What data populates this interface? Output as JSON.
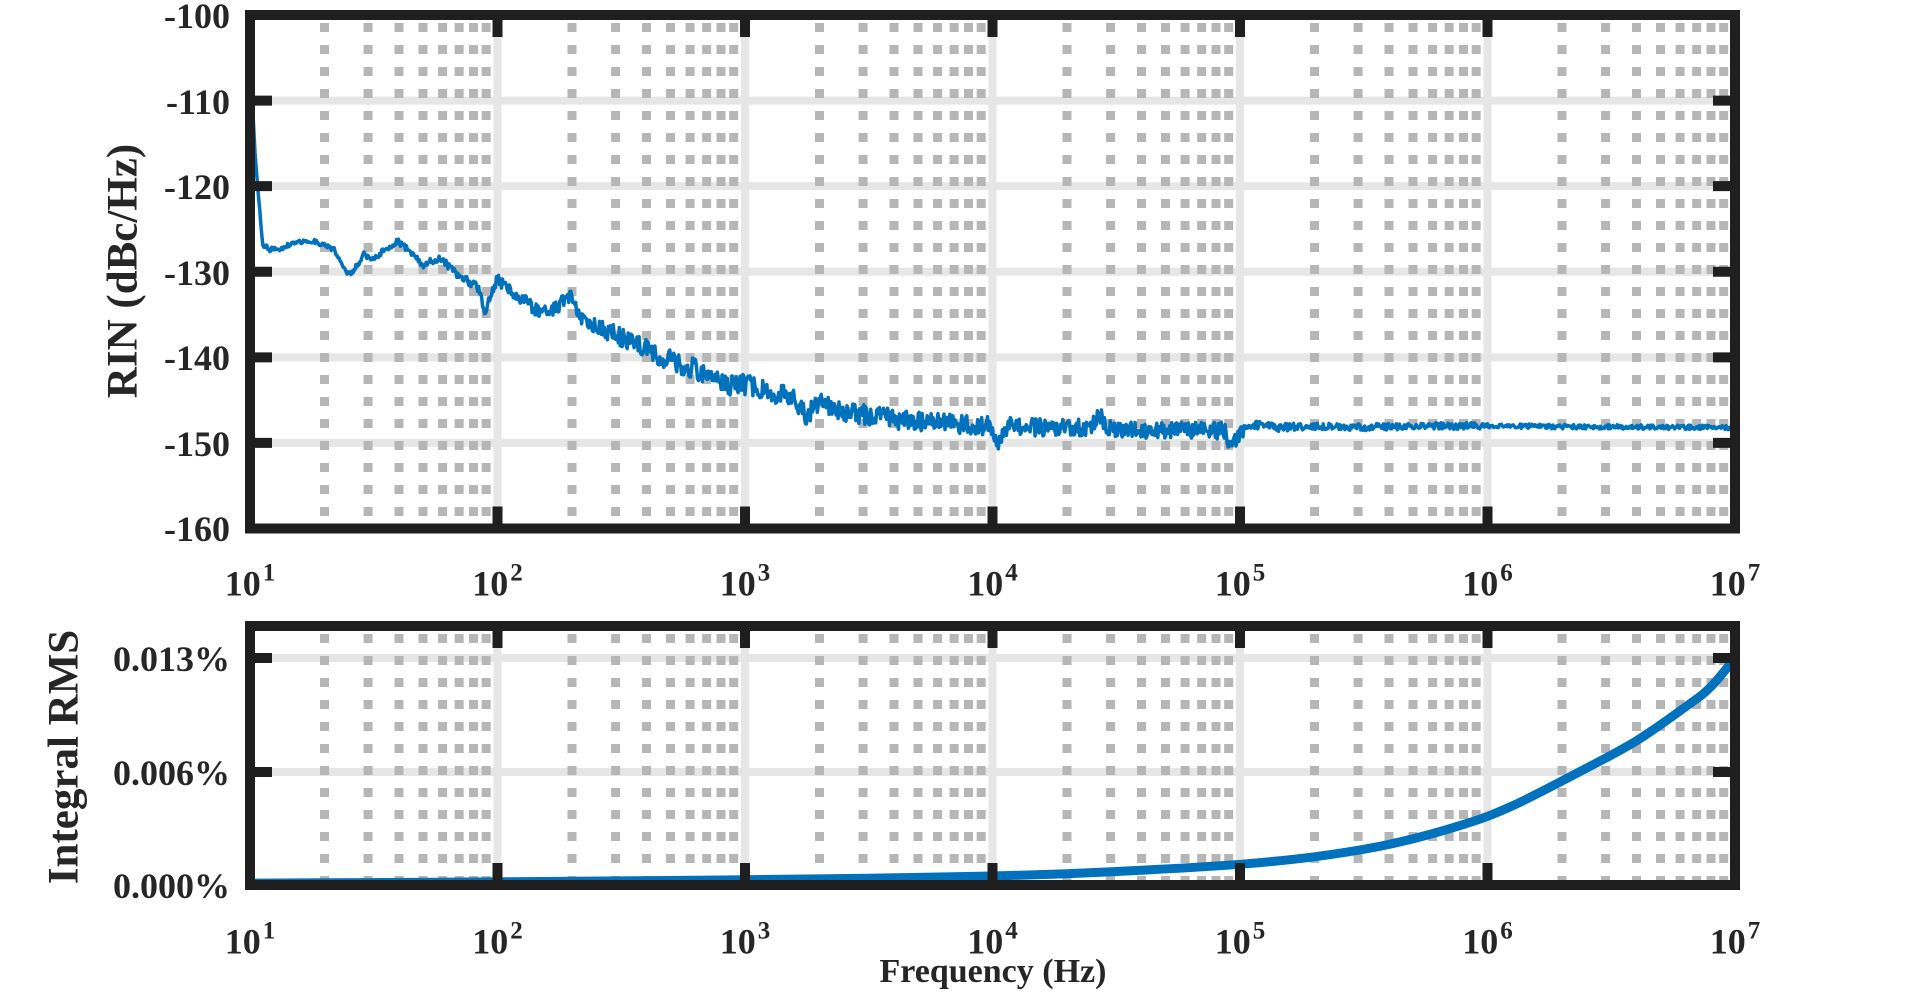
{
  "figure": {
    "background": "#ffffff",
    "frame_color": "#1f1f1f",
    "major_grid_color": "#e6e6e6",
    "minor_grid_color": "#b6b6b6",
    "accent_blue": "#0072BD",
    "tick_label_color": "#262626"
  },
  "chart_data": [
    {
      "type": "line",
      "panel": "top",
      "title": "",
      "xlabel": "",
      "ylabel": "RIN (dBc/Hz)",
      "xscale": "log",
      "xlim": [
        10,
        10000000
      ],
      "ylim": [
        -160,
        -100
      ],
      "grid": "major-solid, minor-dotted",
      "legend": "none",
      "xticks": {
        "base": "10",
        "exponents": [
          1,
          2,
          3,
          4,
          5,
          6,
          7
        ]
      },
      "yticks": [
        {
          "label": "-100",
          "value": -100
        },
        {
          "label": "-110",
          "value": -110
        },
        {
          "label": "-120",
          "value": -120
        },
        {
          "label": "-130",
          "value": -130
        },
        {
          "label": "-140",
          "value": -140
        },
        {
          "label": "-150",
          "value": -150
        },
        {
          "label": "-160",
          "value": -160
        }
      ],
      "series": [
        {
          "name": "RIN",
          "color": "#0072BD",
          "style": "noisy",
          "anchors_log10f_dB": [
            [
              1.0,
              -105.5
            ],
            [
              1.02,
              -116
            ],
            [
              1.05,
              -126.8
            ],
            [
              1.08,
              -127.4
            ],
            [
              1.12,
              -127.3
            ],
            [
              1.16,
              -126.8
            ],
            [
              1.2,
              -126.5
            ],
            [
              1.26,
              -126.4
            ],
            [
              1.3,
              -126.9
            ],
            [
              1.34,
              -127.4
            ],
            [
              1.4,
              -130.4
            ],
            [
              1.43,
              -129.4
            ],
            [
              1.46,
              -128.0
            ],
            [
              1.5,
              -128.5
            ],
            [
              1.53,
              -127.7
            ],
            [
              1.57,
              -126.9
            ],
            [
              1.6,
              -126.5
            ],
            [
              1.65,
              -127.7
            ],
            [
              1.7,
              -129.3
            ],
            [
              1.73,
              -128.7
            ],
            [
              1.77,
              -128.4
            ],
            [
              1.82,
              -129.8
            ],
            [
              1.86,
              -130.9
            ],
            [
              1.9,
              -131.3
            ],
            [
              1.93,
              -132.4
            ],
            [
              1.95,
              -135.3
            ],
            [
              1.97,
              -132.8
            ],
            [
              2.0,
              -130.9
            ],
            [
              2.05,
              -132.2
            ],
            [
              2.1,
              -133.3
            ],
            [
              2.16,
              -134.4
            ],
            [
              2.21,
              -134.7
            ],
            [
              2.25,
              -133.8
            ],
            [
              2.28,
              -133.0
            ],
            [
              2.31,
              -133.2
            ],
            [
              2.34,
              -135.7
            ],
            [
              2.4,
              -136.4
            ],
            [
              2.48,
              -137.4
            ],
            [
              2.56,
              -138.5
            ],
            [
              2.63,
              -139.4
            ],
            [
              2.7,
              -140.4
            ],
            [
              2.78,
              -141.2
            ],
            [
              2.85,
              -141.9
            ],
            [
              2.9,
              -142.5
            ],
            [
              2.95,
              -143.3
            ],
            [
              3.0,
              -143.1
            ],
            [
              3.1,
              -144.1
            ],
            [
              3.2,
              -144.9
            ],
            [
              3.25,
              -146.9
            ],
            [
              3.3,
              -145.5
            ],
            [
              3.4,
              -146.3
            ],
            [
              3.5,
              -146.8
            ],
            [
              3.6,
              -147.2
            ],
            [
              3.7,
              -147.4
            ],
            [
              3.8,
              -147.6
            ],
            [
              3.9,
              -147.9
            ],
            [
              3.98,
              -148.0
            ],
            [
              4.02,
              -150.0
            ],
            [
              4.06,
              -148.1
            ],
            [
              4.2,
              -148.2
            ],
            [
              4.3,
              -148.1
            ],
            [
              4.4,
              -148.3
            ],
            [
              4.43,
              -146.4
            ],
            [
              4.46,
              -148.3
            ],
            [
              4.6,
              -148.5
            ],
            [
              4.75,
              -148.4
            ],
            [
              4.88,
              -148.6
            ],
            [
              4.94,
              -148.5
            ],
            [
              4.96,
              -150.4
            ],
            [
              5.0,
              -148.9
            ],
            [
              5.05,
              -147.9
            ],
            [
              5.15,
              -148.2
            ],
            [
              5.3,
              -148.1
            ],
            [
              5.5,
              -148.15
            ],
            [
              5.75,
              -148.05
            ],
            [
              6.0,
              -148.0
            ],
            [
              6.3,
              -148.1
            ],
            [
              6.6,
              -148.15
            ],
            [
              7.0,
              -148.2
            ]
          ],
          "noise_halfwidth_dB": [
            [
              1.0,
              0.25
            ],
            [
              1.4,
              0.3
            ],
            [
              1.8,
              0.45
            ],
            [
              2.0,
              0.6
            ],
            [
              2.2,
              0.9
            ],
            [
              2.5,
              1.1
            ],
            [
              2.9,
              1.3
            ],
            [
              3.3,
              1.25
            ],
            [
              3.8,
              1.15
            ],
            [
              4.2,
              1.05
            ],
            [
              4.6,
              1.0
            ],
            [
              4.97,
              1.0
            ],
            [
              5.03,
              0.5
            ],
            [
              5.5,
              0.42
            ],
            [
              5.97,
              0.38
            ],
            [
              6.03,
              0.28
            ],
            [
              7.0,
              0.25
            ]
          ]
        }
      ]
    },
    {
      "type": "line",
      "panel": "bottom",
      "title": "",
      "xlabel": "Frequency (Hz)",
      "ylabel": "Integral RMS",
      "xscale": "log",
      "xlim": [
        10,
        10000000
      ],
      "ylim_percent": [
        0,
        0.0148
      ],
      "grid": "major-solid, minor-dotted",
      "legend": "none",
      "xticks": {
        "base": "10",
        "exponents": [
          1,
          2,
          3,
          4,
          5,
          6,
          7
        ]
      },
      "yticks": [
        {
          "label": "0.013%",
          "value": 0.013
        },
        {
          "label": "0.006%",
          "value": 0.006
        },
        {
          "label": "0.000%",
          "value": 0
        }
      ],
      "series": [
        {
          "name": "Integral RMS",
          "color": "#0072BD",
          "style": "smooth",
          "anchors_log10f_percent": [
            [
              1.0,
              0.0001
            ],
            [
              1.5,
              0.00013
            ],
            [
              2.0,
              0.00017
            ],
            [
              2.5,
              0.00022
            ],
            [
              3.0,
              0.00028
            ],
            [
              3.5,
              0.00036
            ],
            [
              4.0,
              0.00048
            ],
            [
              4.3,
              0.0006
            ],
            [
              4.6,
              0.00078
            ],
            [
              5.0,
              0.0011
            ],
            [
              5.3,
              0.0015
            ],
            [
              5.6,
              0.00215
            ],
            [
              5.9,
              0.0032
            ],
            [
              6.1,
              0.0042
            ],
            [
              6.37,
              0.006
            ],
            [
              6.6,
              0.0079
            ],
            [
              6.8,
              0.01
            ],
            [
              6.9,
              0.0112
            ],
            [
              7.0,
              0.013
            ]
          ]
        }
      ]
    }
  ]
}
